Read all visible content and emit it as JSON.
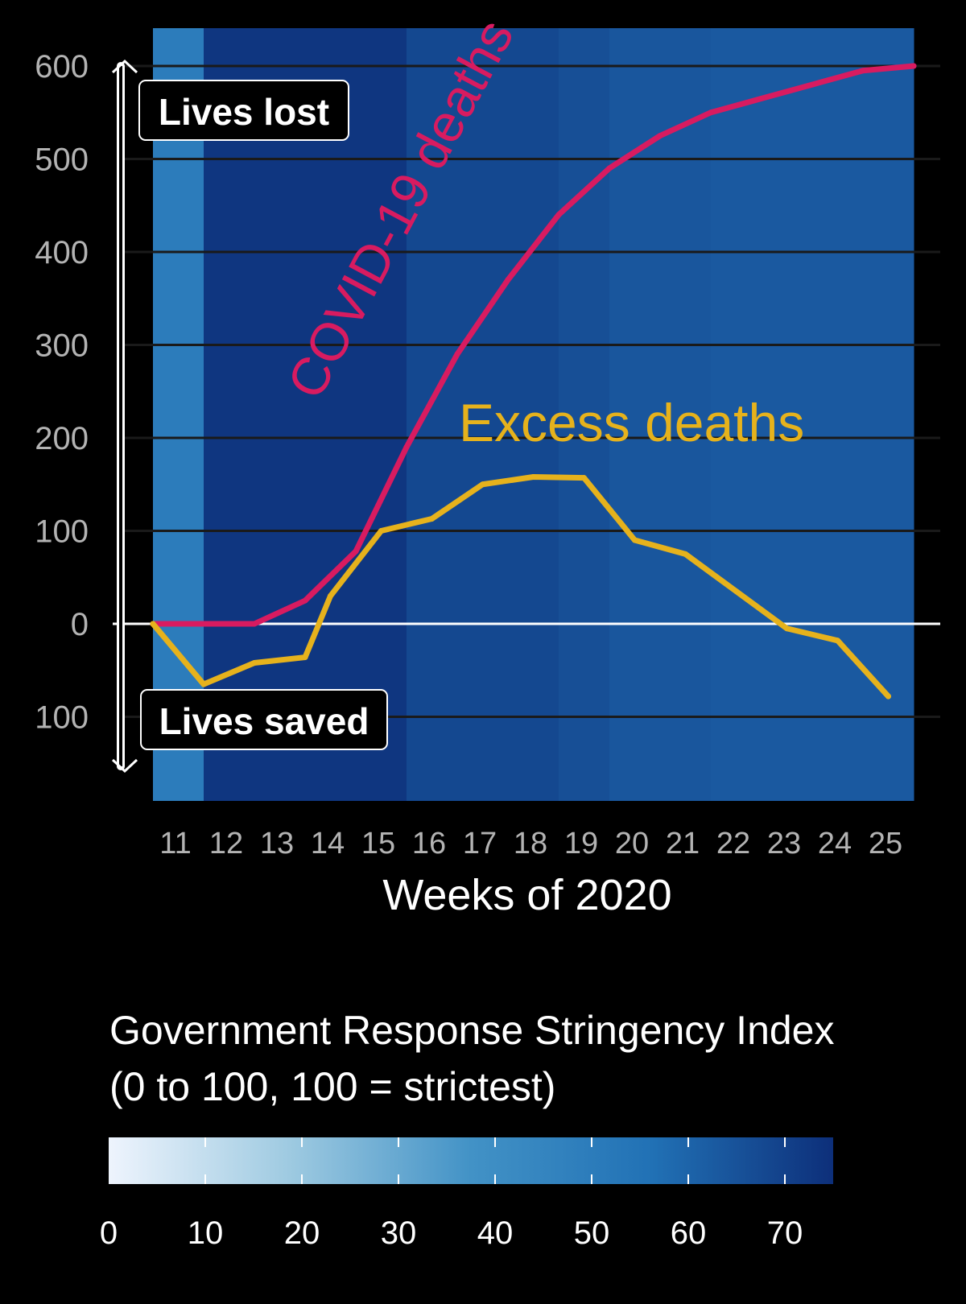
{
  "chart_data": {
    "type": "line",
    "x": [
      11,
      12,
      13,
      14,
      15,
      16,
      17,
      18,
      19,
      20,
      21,
      22,
      23,
      24,
      25
    ],
    "series": [
      {
        "name": "COVID-19 deaths",
        "label": "COVID-19 deaths",
        "color": "#d81b60",
        "values": [
          0,
          0,
          25,
          78,
          190,
          290,
          370,
          440,
          490,
          525,
          550,
          565,
          580,
          595,
          600
        ]
      },
      {
        "name": "Excess deaths",
        "label": "Excess deaths",
        "color": "#e6b21c",
        "values": [
          0,
          -65,
          -42,
          -36,
          30,
          100,
          113,
          150,
          158,
          157,
          90,
          75,
          35,
          -5,
          -18,
          -78
        ],
        "x": [
          11,
          12,
          13,
          14,
          14.5,
          15.5,
          16.5,
          17.5,
          18.5,
          19.5,
          20.5,
          21.5,
          22.5,
          23.5,
          24.5,
          25.5
        ]
      }
    ],
    "stringency_by_week": [
      {
        "week": 11,
        "index": 50
      },
      {
        "week": 12,
        "index": 73
      },
      {
        "week": 13,
        "index": 73
      },
      {
        "week": 14,
        "index": 73
      },
      {
        "week": 15,
        "index": 73
      },
      {
        "week": 16,
        "index": 68
      },
      {
        "week": 17,
        "index": 68
      },
      {
        "week": 18,
        "index": 68
      },
      {
        "week": 19,
        "index": 66
      },
      {
        "week": 20,
        "index": 64
      },
      {
        "week": 21,
        "index": 64
      },
      {
        "week": 22,
        "index": 63
      },
      {
        "week": 23,
        "index": 63
      },
      {
        "week": 24,
        "index": 63
      },
      {
        "week": 25,
        "index": 63
      }
    ],
    "yticks": [
      {
        "value": 600,
        "label": "600"
      },
      {
        "value": 500,
        "label": "500"
      },
      {
        "value": 400,
        "label": "400"
      },
      {
        "value": 300,
        "label": "300"
      },
      {
        "value": 200,
        "label": "200"
      },
      {
        "value": 100,
        "label": "100"
      },
      {
        "value": 0,
        "label": "0"
      },
      {
        "value": -100,
        "label": "100"
      }
    ],
    "xticks": [
      "11",
      "12",
      "13",
      "14",
      "15",
      "16",
      "17",
      "18",
      "19",
      "20",
      "21",
      "22",
      "23",
      "24",
      "25"
    ],
    "xlabel": "Weeks of 2020",
    "ylim": [
      -190,
      640
    ],
    "annotations": {
      "lives_lost": "Lives lost",
      "lives_saved": "Lives saved"
    },
    "legend": {
      "title_line1": "Government Response Stringency Index",
      "title_line2": "(0 to 100, 100 = strictest)",
      "ticks": [
        "0",
        "10",
        "20",
        "30",
        "40",
        "50",
        "60",
        "70"
      ],
      "range": [
        0,
        75
      ],
      "colors": [
        "#eef4fd",
        "#9ecae1",
        "#4292c6",
        "#2171b5",
        "#0d2f7a"
      ]
    }
  }
}
